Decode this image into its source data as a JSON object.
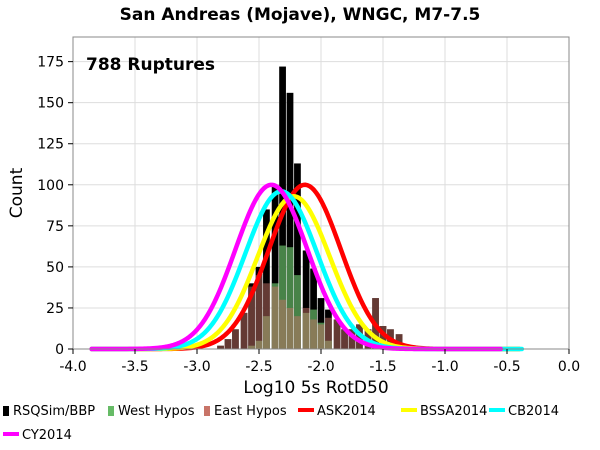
{
  "chart_data": {
    "type": "bar",
    "title": "San Andreas (Mojave), WNGC, M7-7.5",
    "xlabel": "Log10 5s RotD50",
    "ylabel": "Count",
    "annotation": "788 Ruptures",
    "xlim": [
      -4.0,
      0.0
    ],
    "ylim": [
      0,
      190
    ],
    "xticks": [
      "-4.0",
      "-3.5",
      "-3.0",
      "-2.5",
      "-2.0",
      "-1.5",
      "-1.0",
      "-0.5",
      "0.0"
    ],
    "yticks": [
      "0",
      "25",
      "50",
      "75",
      "100",
      "125",
      "150",
      "175"
    ],
    "grid": true,
    "legend_placement": "bottom",
    "bin_width": 0.0625,
    "histograms": [
      {
        "name": "RSQSim/BBP",
        "color": "#000000",
        "bins": [
          {
            "x": -2.81,
            "y": 2
          },
          {
            "x": -2.75,
            "y": 6
          },
          {
            "x": -2.69,
            "y": 12
          },
          {
            "x": -2.62,
            "y": 22
          },
          {
            "x": -2.56,
            "y": 40
          },
          {
            "x": -2.5,
            "y": 50
          },
          {
            "x": -2.44,
            "y": 85
          },
          {
            "x": -2.37,
            "y": 100
          },
          {
            "x": -2.31,
            "y": 172
          },
          {
            "x": -2.25,
            "y": 156
          },
          {
            "x": -2.19,
            "y": 113
          },
          {
            "x": -2.12,
            "y": 60
          },
          {
            "x": -2.06,
            "y": 49
          },
          {
            "x": -2.0,
            "y": 31
          },
          {
            "x": -1.94,
            "y": 24
          },
          {
            "x": -1.87,
            "y": 18
          },
          {
            "x": -1.81,
            "y": 12
          },
          {
            "x": -1.75,
            "y": 12
          },
          {
            "x": -1.69,
            "y": 15
          },
          {
            "x": -1.62,
            "y": 12
          },
          {
            "x": -1.56,
            "y": 31
          },
          {
            "x": -1.5,
            "y": 14
          },
          {
            "x": -1.44,
            "y": 12
          },
          {
            "x": -1.37,
            "y": 9
          },
          {
            "x": -1.31,
            "y": 1
          }
        ]
      },
      {
        "name": "West Hypos",
        "color": "#66bb66",
        "bins": [
          {
            "x": -2.56,
            "y": 2
          },
          {
            "x": -2.5,
            "y": 5
          },
          {
            "x": -2.44,
            "y": 20
          },
          {
            "x": -2.37,
            "y": 40
          },
          {
            "x": -2.31,
            "y": 63
          },
          {
            "x": -2.25,
            "y": 62
          },
          {
            "x": -2.19,
            "y": 45
          },
          {
            "x": -2.12,
            "y": 22
          },
          {
            "x": -2.06,
            "y": 24
          },
          {
            "x": -2.0,
            "y": 16
          },
          {
            "x": -1.94,
            "y": 5
          }
        ]
      },
      {
        "name": "East Hypos",
        "color": "#c87468",
        "bins": [
          {
            "x": -2.81,
            "y": 2
          },
          {
            "x": -2.75,
            "y": 6
          },
          {
            "x": -2.69,
            "y": 12
          },
          {
            "x": -2.62,
            "y": 22
          },
          {
            "x": -2.56,
            "y": 38
          },
          {
            "x": -2.5,
            "y": 45
          },
          {
            "x": -2.44,
            "y": 40
          },
          {
            "x": -2.37,
            "y": 38
          },
          {
            "x": -2.31,
            "y": 30
          },
          {
            "x": -2.25,
            "y": 25
          },
          {
            "x": -2.19,
            "y": 20
          },
          {
            "x": -2.12,
            "y": 25
          },
          {
            "x": -2.06,
            "y": 18
          },
          {
            "x": -2.0,
            "y": 15
          },
          {
            "x": -1.94,
            "y": 19
          },
          {
            "x": -1.87,
            "y": 18
          },
          {
            "x": -1.81,
            "y": 12
          },
          {
            "x": -1.75,
            "y": 12
          },
          {
            "x": -1.69,
            "y": 15
          },
          {
            "x": -1.62,
            "y": 12
          },
          {
            "x": -1.56,
            "y": 31
          },
          {
            "x": -1.5,
            "y": 14
          },
          {
            "x": -1.44,
            "y": 12
          },
          {
            "x": -1.37,
            "y": 9
          },
          {
            "x": -1.31,
            "y": 1
          }
        ]
      }
    ],
    "series": [
      {
        "name": "ASK2014",
        "color": "#ff0000",
        "type": "normal-curve",
        "mean": -2.13,
        "sigma": 0.29,
        "peak": 100,
        "x_range": [
          -3.85,
          -0.4
        ]
      },
      {
        "name": "BSSA2014",
        "color": "#ffff00",
        "type": "normal-curve",
        "mean": -2.22,
        "sigma": 0.29,
        "peak": 93,
        "x_range": [
          -3.85,
          -0.4
        ]
      },
      {
        "name": "CB2014",
        "color": "#00ffff",
        "type": "normal-curve",
        "mean": -2.32,
        "sigma": 0.29,
        "peak": 96,
        "x_range": [
          -3.85,
          -0.38
        ]
      },
      {
        "name": "CY2014",
        "color": "#ff00ff",
        "type": "normal-curve",
        "mean": -2.4,
        "sigma": 0.29,
        "peak": 100,
        "x_range": [
          -3.85,
          -0.55
        ]
      }
    ],
    "legend": [
      {
        "label": "RSQSim/BBP",
        "color": "#000000",
        "kind": "box"
      },
      {
        "label": "West Hypos",
        "color": "#66bb66",
        "kind": "box"
      },
      {
        "label": "East Hypos",
        "color": "#c87468",
        "kind": "box"
      },
      {
        "label": "ASK2014",
        "color": "#ff0000",
        "kind": "line"
      },
      {
        "label": "BSSA2014",
        "color": "#ffff00",
        "kind": "line"
      },
      {
        "label": "CB2014",
        "color": "#00ffff",
        "kind": "line"
      },
      {
        "label": "CY2014",
        "color": "#ff00ff",
        "kind": "line"
      }
    ]
  }
}
